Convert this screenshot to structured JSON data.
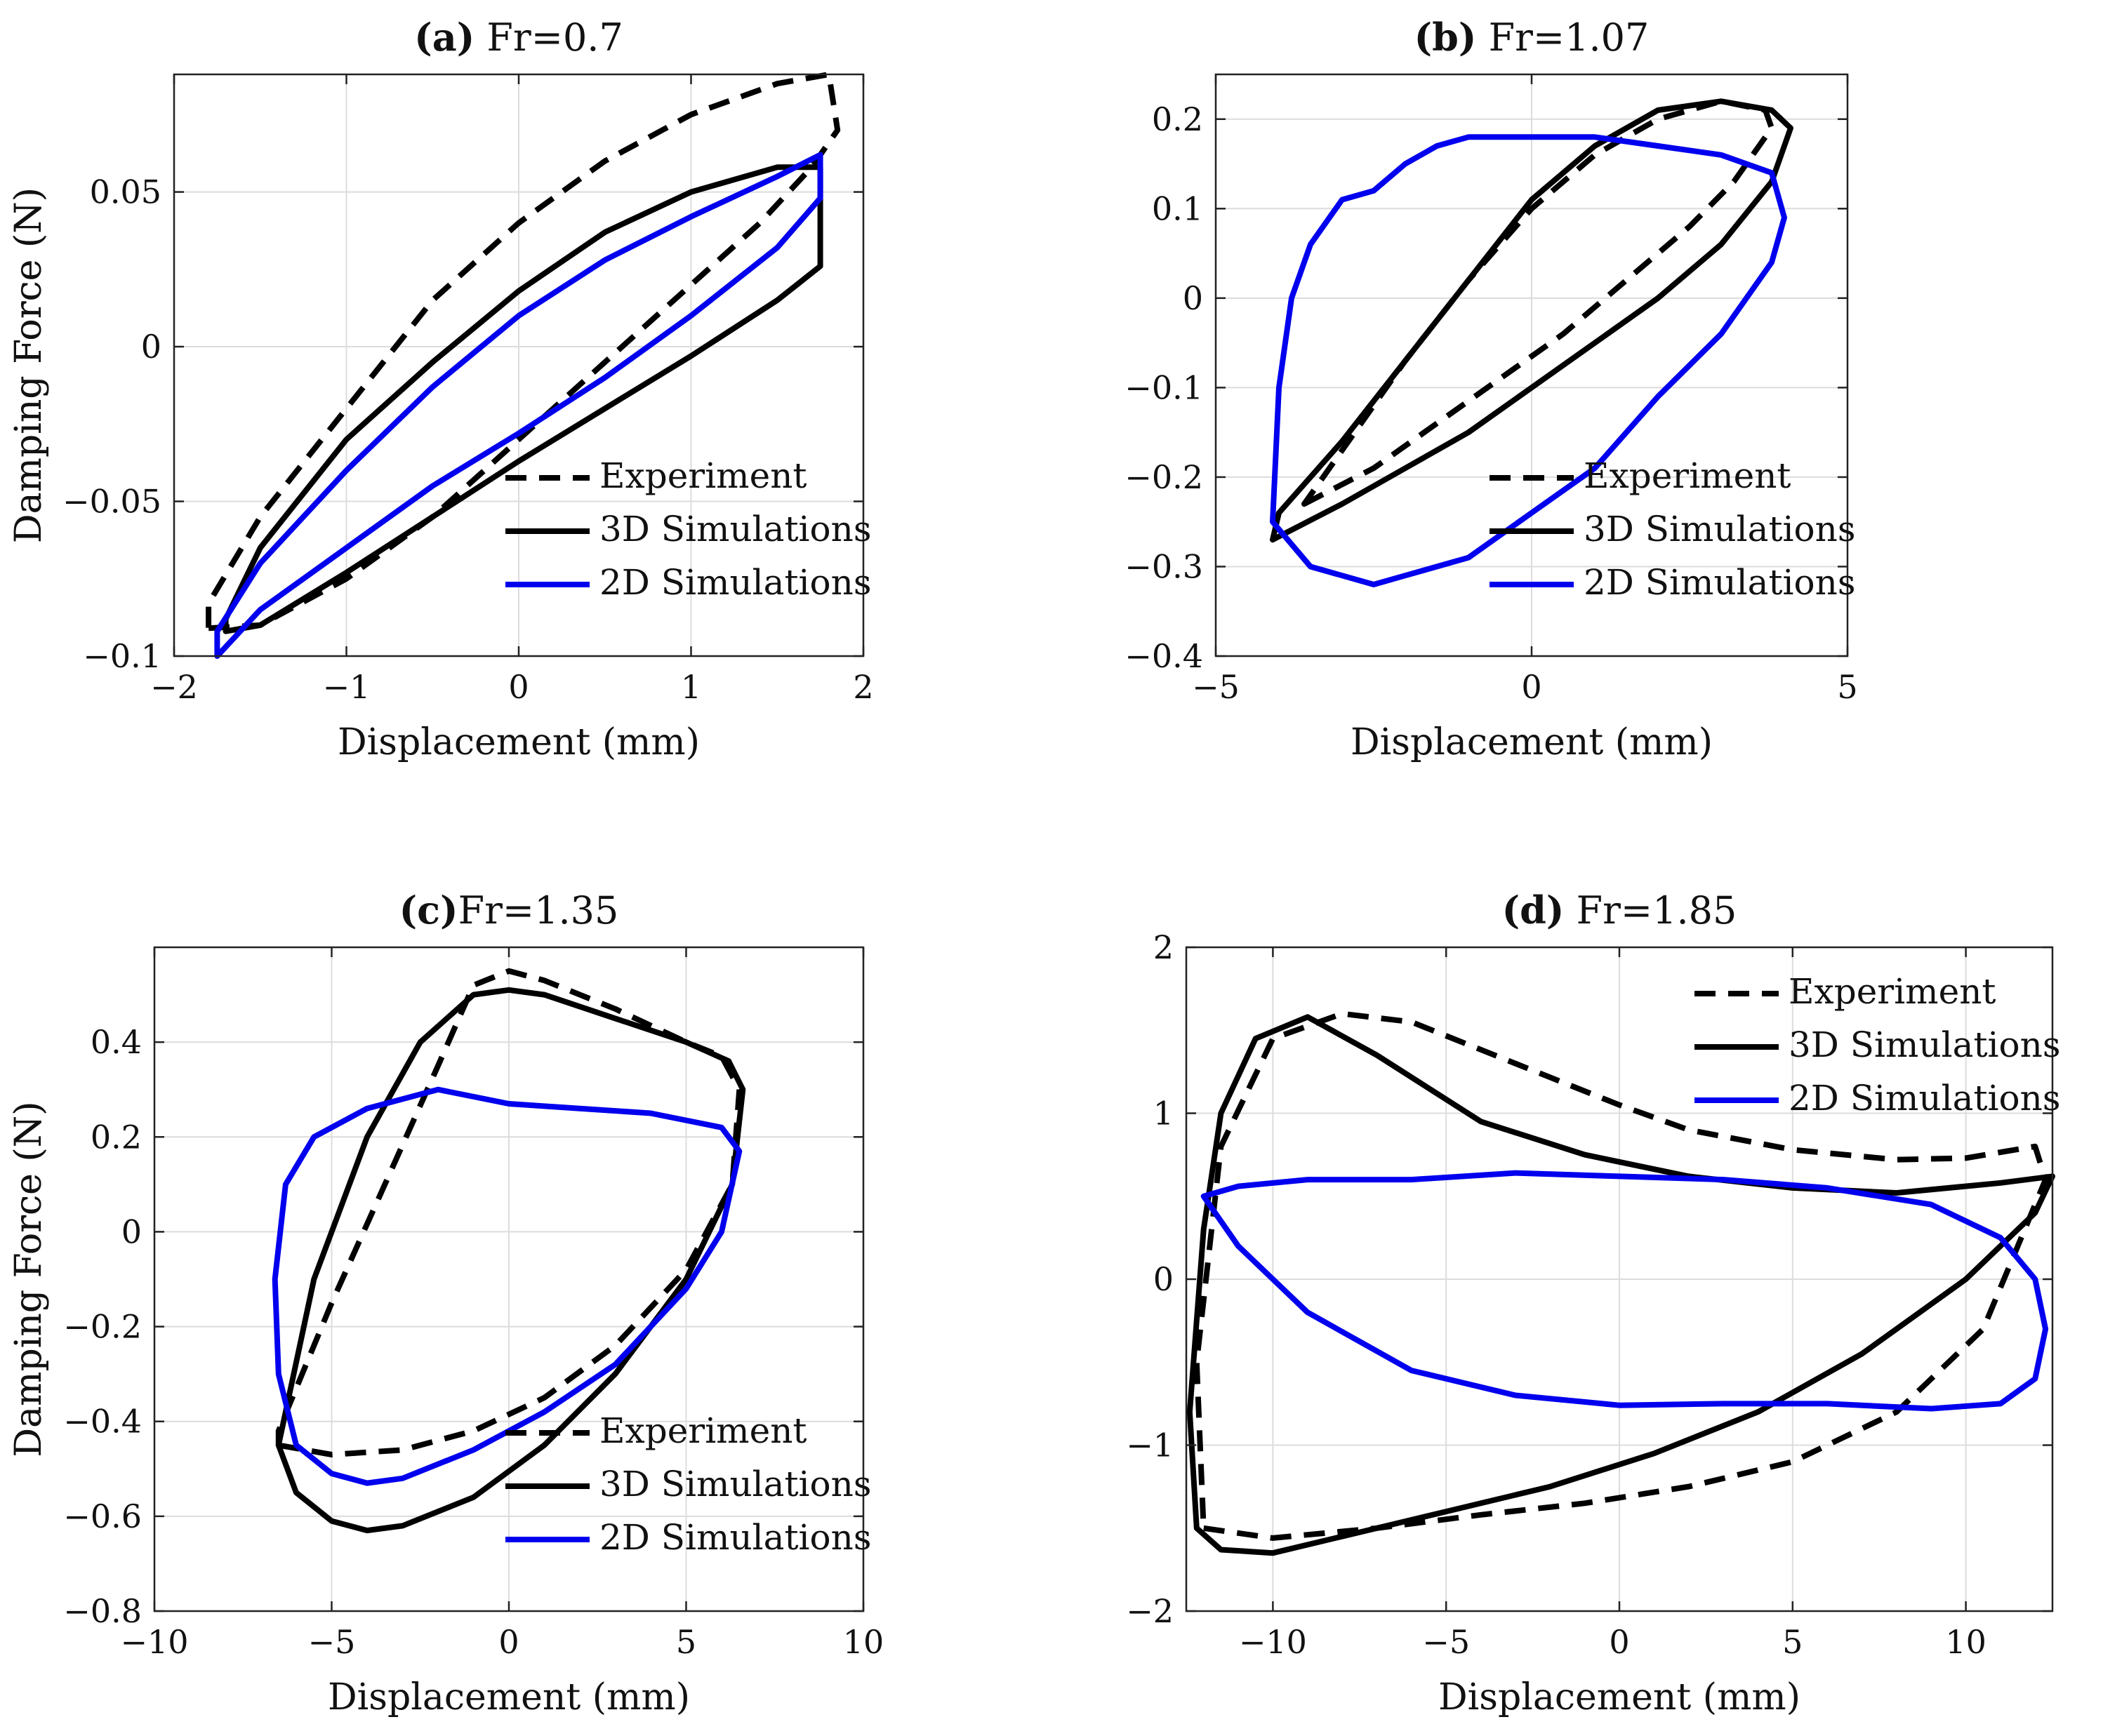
{
  "chart_data": [
    {
      "type": "line",
      "title_prefix": "(a)",
      "title_text": " Fr=0.7",
      "xlabel": "Displacement (mm)",
      "ylabel": "Damping Force (N)",
      "xlim": [
        -2,
        2
      ],
      "ylim": [
        -0.1,
        0.088
      ],
      "xticks": [
        -2,
        -1,
        0,
        1,
        2
      ],
      "xtick_labels": [
        "−2",
        "−1",
        "0",
        "1",
        "2"
      ],
      "yticks": [
        -0.1,
        -0.05,
        0,
        0.05
      ],
      "ytick_labels": [
        "−0.1",
        "−0.05",
        "0",
        "0.05"
      ],
      "grid": true,
      "legend_position": "bottom-right",
      "legend": [
        "Experiment",
        "3D Simulations",
        "2D Simulations"
      ],
      "series": [
        {
          "name": "Experiment",
          "style": "dashed",
          "color": "#000000",
          "x": [
            -1.8,
            -1.5,
            -1.0,
            -0.5,
            0,
            0.5,
            1.0,
            1.4,
            1.7,
            1.85,
            1.8,
            1.5,
            1.0,
            0.5,
            0,
            -0.5,
            -1.0,
            -1.5,
            -1.8
          ],
          "y": [
            -0.091,
            -0.09,
            -0.075,
            -0.055,
            -0.03,
            -0.005,
            0.02,
            0.04,
            0.058,
            0.07,
            0.088,
            0.085,
            0.075,
            0.06,
            0.04,
            0.015,
            -0.02,
            -0.055,
            -0.083
          ]
        },
        {
          "name": "3D Simulations",
          "style": "solid",
          "color": "#000000",
          "x": [
            -1.7,
            -1.5,
            -1.0,
            -0.5,
            0,
            0.5,
            1.0,
            1.5,
            1.75,
            1.75,
            1.5,
            1.0,
            0.5,
            0,
            -0.5,
            -1.0,
            -1.5,
            -1.7
          ],
          "y": [
            -0.092,
            -0.09,
            -0.073,
            -0.055,
            -0.037,
            -0.02,
            -0.003,
            0.015,
            0.026,
            0.058,
            0.058,
            0.05,
            0.037,
            0.018,
            -0.005,
            -0.03,
            -0.065,
            -0.088
          ]
        },
        {
          "name": "2D Simulations",
          "style": "solid",
          "color": "#0000ee",
          "x": [
            -1.75,
            -1.5,
            -1.0,
            -0.5,
            0,
            0.5,
            1.0,
            1.5,
            1.75,
            1.75,
            1.5,
            1.0,
            0.5,
            0,
            -0.5,
            -1.0,
            -1.5,
            -1.75
          ],
          "y": [
            -0.1,
            -0.085,
            -0.065,
            -0.045,
            -0.028,
            -0.01,
            0.01,
            0.032,
            0.048,
            0.062,
            0.055,
            0.042,
            0.028,
            0.01,
            -0.013,
            -0.04,
            -0.07,
            -0.092
          ]
        }
      ]
    },
    {
      "type": "line",
      "title_prefix": "(b)",
      "title_text": " Fr=1.07",
      "xlabel": "Displacement (mm)",
      "ylabel": "Damping Force (N)",
      "xlim": [
        -5,
        5
      ],
      "ylim": [
        -0.4,
        0.25
      ],
      "xticks": [
        -5,
        0,
        5
      ],
      "xtick_labels": [
        "−5",
        "0",
        "5"
      ],
      "yticks": [
        -0.4,
        -0.3,
        -0.2,
        -0.1,
        0,
        0.1,
        0.2
      ],
      "ytick_labels": [
        "−0.4",
        "−0.3",
        "−0.2",
        "−0.1",
        "0",
        "0.1",
        "0.2"
      ],
      "grid": true,
      "legend_position": "bottom-right",
      "legend": [
        "Experiment",
        "3D Simulations",
        "2D Simulations"
      ],
      "series": [
        {
          "name": "Experiment",
          "style": "dashed",
          "color": "#000000",
          "x": [
            -3.6,
            -2.5,
            -1.5,
            -0.5,
            0.5,
            1.5,
            2.5,
            3.2,
            3.8,
            3.7,
            3.0,
            2.0,
            1.0,
            0,
            -1.0,
            -2.0,
            -3.0,
            -3.6
          ],
          "y": [
            -0.23,
            -0.19,
            -0.14,
            -0.09,
            -0.04,
            0.02,
            0.08,
            0.13,
            0.19,
            0.21,
            0.22,
            0.2,
            0.16,
            0.1,
            0.02,
            -0.07,
            -0.17,
            -0.23
          ]
        },
        {
          "name": "3D Simulations",
          "style": "solid",
          "color": "#000000",
          "x": [
            -4.1,
            -3.0,
            -2.0,
            -1.0,
            0,
            1.0,
            2.0,
            3.0,
            3.8,
            4.1,
            3.8,
            3.0,
            2.0,
            1.0,
            0,
            -1.0,
            -2.0,
            -3.0,
            -4.0,
            -4.1
          ],
          "y": [
            -0.27,
            -0.23,
            -0.19,
            -0.15,
            -0.1,
            -0.05,
            0.0,
            0.06,
            0.13,
            0.19,
            0.21,
            0.22,
            0.21,
            0.17,
            0.11,
            0.02,
            -0.07,
            -0.16,
            -0.24,
            -0.27
          ]
        },
        {
          "name": "2D Simulations",
          "style": "solid",
          "color": "#0000ee",
          "x": [
            -4.1,
            -4.0,
            -3.8,
            -3.5,
            -3.0,
            -2.5,
            -2.0,
            -1.5,
            -1.0,
            0,
            1.0,
            2.0,
            3.0,
            3.8,
            4.0,
            3.8,
            3.0,
            2.0,
            1.0,
            0,
            -1.0,
            -2.0,
            -2.5,
            -3.5,
            -4.1
          ],
          "y": [
            -0.25,
            -0.1,
            0.0,
            0.06,
            0.11,
            0.12,
            0.15,
            0.17,
            0.18,
            0.18,
            0.18,
            0.17,
            0.16,
            0.14,
            0.09,
            0.04,
            -0.04,
            -0.11,
            -0.19,
            -0.24,
            -0.29,
            -0.31,
            -0.32,
            -0.3,
            -0.25
          ]
        }
      ]
    },
    {
      "type": "line",
      "title_prefix": "(c)",
      "title_text": "Fr=1.35",
      "xlabel": "Displacement (mm)",
      "ylabel": "Damping Force (N)",
      "xlim": [
        -10,
        10
      ],
      "ylim": [
        -0.8,
        0.6
      ],
      "xticks": [
        -10,
        -5,
        0,
        5,
        10
      ],
      "xtick_labels": [
        "−10",
        "−5",
        "0",
        "5",
        "10"
      ],
      "yticks": [
        -0.8,
        -0.6,
        -0.4,
        -0.2,
        0,
        0.2,
        0.4
      ],
      "ytick_labels": [
        "−0.8",
        "−0.6",
        "−0.4",
        "−0.2",
        "0",
        "0.2",
        "0.4"
      ],
      "grid": true,
      "legend_position": "bottom-right",
      "legend": [
        "Experiment",
        "3D Simulations",
        "2D Simulations"
      ],
      "series": [
        {
          "name": "Experiment",
          "style": "dashed",
          "color": "#000000",
          "x": [
            -6.5,
            -5.0,
            -3.0,
            -1.0,
            1.0,
            3.0,
            5.0,
            6.3,
            6.5,
            6.0,
            5.0,
            3.0,
            1.0,
            0,
            -1.0,
            -2.0,
            -3.5,
            -5.0,
            -6.5
          ],
          "y": [
            -0.45,
            -0.47,
            -0.46,
            -0.42,
            -0.35,
            -0.24,
            -0.08,
            0.1,
            0.3,
            0.37,
            0.4,
            0.47,
            0.53,
            0.55,
            0.52,
            0.35,
            0.1,
            -0.15,
            -0.42
          ]
        },
        {
          "name": "3D Simulations",
          "style": "solid",
          "color": "#000000",
          "x": [
            -6.5,
            -6.0,
            -5.0,
            -4.0,
            -3.0,
            -1.0,
            1.0,
            3.0,
            5.0,
            6.3,
            6.6,
            6.2,
            5.0,
            3.0,
            1.0,
            0,
            -1.0,
            -2.5,
            -4.0,
            -5.5,
            -6.5
          ],
          "y": [
            -0.45,
            -0.55,
            -0.61,
            -0.63,
            -0.62,
            -0.56,
            -0.45,
            -0.3,
            -0.1,
            0.1,
            0.3,
            0.36,
            0.4,
            0.45,
            0.5,
            0.51,
            0.5,
            0.4,
            0.2,
            -0.1,
            -0.45
          ]
        },
        {
          "name": "2D Simulations",
          "style": "solid",
          "color": "#0000ee",
          "x": [
            -6.5,
            -6.0,
            -5.0,
            -4.0,
            -3.0,
            -1.0,
            1.0,
            3.0,
            5.0,
            6.0,
            6.5,
            6.0,
            4.0,
            2.0,
            0,
            -2.0,
            -4.0,
            -5.5,
            -6.3,
            -6.6,
            -6.5
          ],
          "y": [
            -0.3,
            -0.45,
            -0.51,
            -0.53,
            -0.52,
            -0.46,
            -0.38,
            -0.28,
            -0.12,
            0.0,
            0.17,
            0.22,
            0.25,
            0.26,
            0.27,
            0.3,
            0.26,
            0.2,
            0.1,
            -0.1,
            -0.3
          ]
        }
      ]
    },
    {
      "type": "line",
      "title_prefix": "(d)",
      "title_text": " Fr=1.85",
      "xlabel": "Displacement (mm)",
      "ylabel": "Damping Force (N)",
      "xlim": [
        -12.5,
        12.5
      ],
      "ylim": [
        -2,
        2
      ],
      "xticks": [
        -10,
        -5,
        0,
        5,
        10
      ],
      "xtick_labels": [
        "−10",
        "−5",
        "0",
        "5",
        "10"
      ],
      "yticks": [
        -2,
        -1,
        0,
        1,
        2
      ],
      "ytick_labels": [
        "−2",
        "−1",
        "0",
        "1",
        "2"
      ],
      "grid": true,
      "legend_position": "top-right",
      "legend": [
        "Experiment",
        "3D Simulations",
        "2D Simulations"
      ],
      "series": [
        {
          "name": "Experiment",
          "style": "dashed",
          "color": "#000000",
          "x": [
            -12.0,
            -10.0,
            -7.0,
            -4.0,
            -1.0,
            2.0,
            5.0,
            8.0,
            10.5,
            12.3,
            12.0,
            10.0,
            8.0,
            5.0,
            2.0,
            0,
            -3.0,
            -6.0,
            -8.0,
            -10.0,
            -11.5,
            -12.2,
            -12.0
          ],
          "y": [
            -1.5,
            -1.56,
            -1.5,
            -1.42,
            -1.35,
            -1.25,
            -1.1,
            -0.8,
            -0.3,
            0.6,
            0.8,
            0.73,
            0.72,
            0.78,
            0.9,
            1.05,
            1.3,
            1.55,
            1.6,
            1.45,
            0.8,
            -0.5,
            -1.5
          ]
        },
        {
          "name": "3D Simulations",
          "style": "solid",
          "color": "#000000",
          "x": [
            -12.2,
            -11.5,
            -10.0,
            -8.0,
            -5.0,
            -2.0,
            1.0,
            4.0,
            7.0,
            10.0,
            12.0,
            12.5,
            11.0,
            8.0,
            5.0,
            2.0,
            -1.0,
            -4.0,
            -7.0,
            -9.0,
            -10.5,
            -11.5,
            -12.0,
            -12.4,
            -12.2
          ],
          "y": [
            -1.5,
            -1.63,
            -1.65,
            -1.55,
            -1.4,
            -1.25,
            -1.05,
            -0.8,
            -0.45,
            0.0,
            0.4,
            0.62,
            0.58,
            0.52,
            0.55,
            0.62,
            0.75,
            0.95,
            1.35,
            1.58,
            1.45,
            1.0,
            0.3,
            -0.8,
            -1.5
          ]
        },
        {
          "name": "2D Simulations",
          "style": "solid",
          "color": "#0000ee",
          "x": [
            -12.0,
            -11.0,
            -9.0,
            -6.0,
            -3.0,
            0,
            3.0,
            6.0,
            9.0,
            11.0,
            12.0,
            12.3,
            12.0,
            11.0,
            9.0,
            6.0,
            3.0,
            0,
            -3.0,
            -6.0,
            -9.0,
            -11.0,
            -12.0
          ],
          "y": [
            0.5,
            0.2,
            -0.2,
            -0.55,
            -0.7,
            -0.76,
            -0.75,
            -0.75,
            -0.78,
            -0.75,
            -0.6,
            -0.3,
            0.0,
            0.25,
            0.45,
            0.55,
            0.6,
            0.62,
            0.64,
            0.6,
            0.6,
            0.56,
            0.5
          ]
        }
      ]
    }
  ]
}
